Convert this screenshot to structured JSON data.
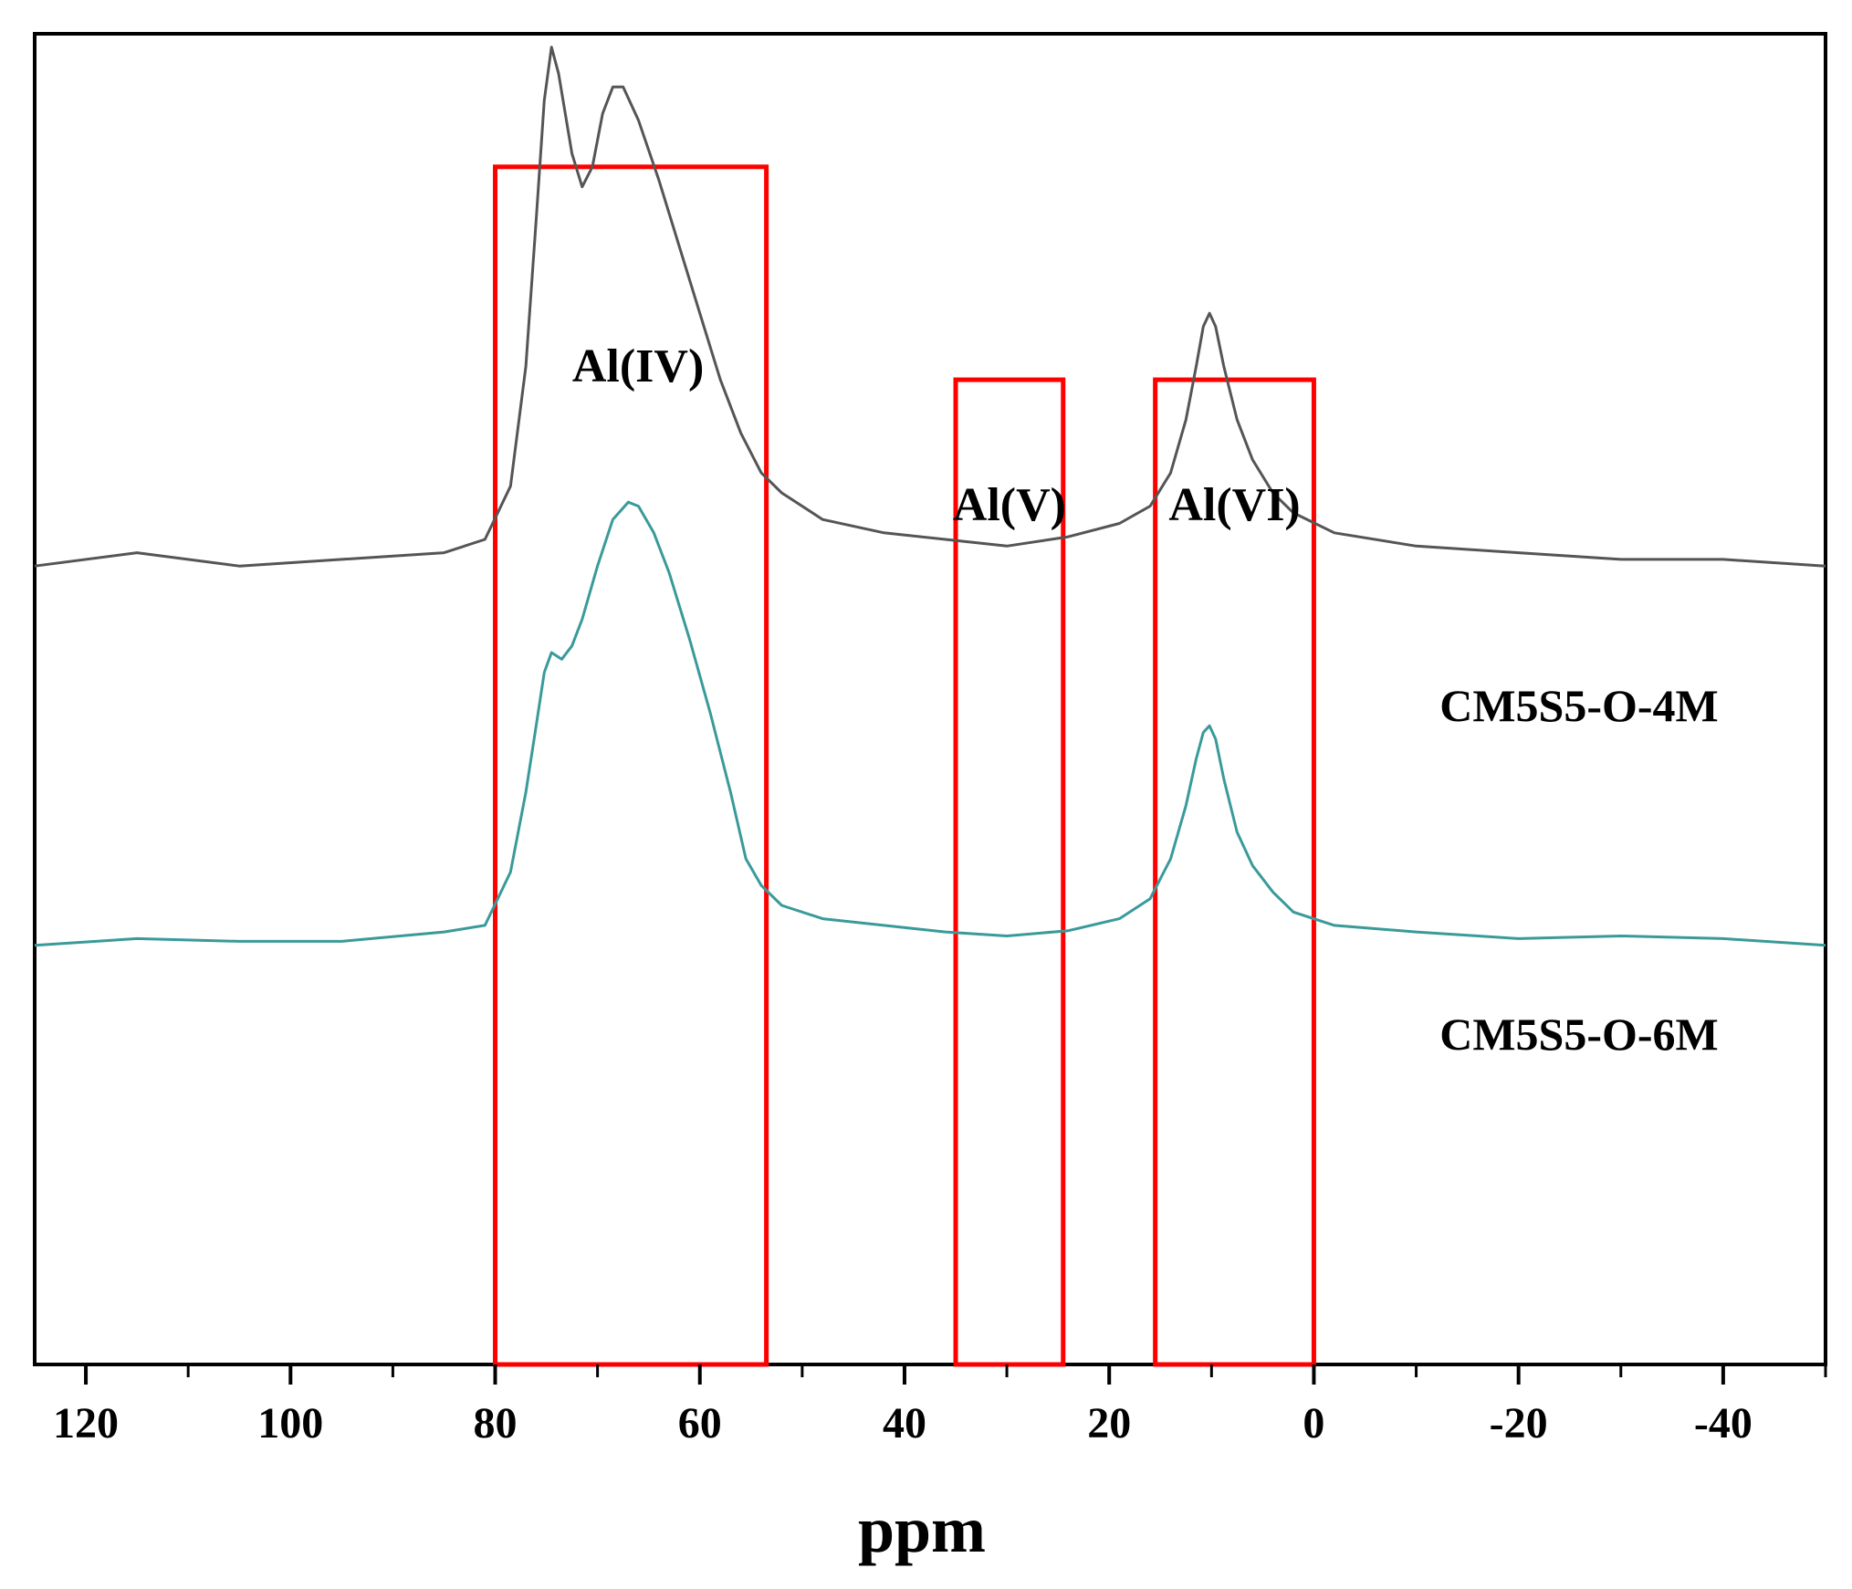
{
  "chart_data": {
    "type": "line",
    "title": "",
    "xlabel": "ppm",
    "ylabel": "",
    "xlim": [
      125,
      -50
    ],
    "x_reversed": true,
    "x_ticks": [
      120,
      100,
      80,
      60,
      40,
      20,
      0,
      -20,
      -40
    ],
    "x_tick_labels": [
      "120",
      "100",
      "80",
      "60",
      "40",
      "20",
      "0",
      "-20",
      "-40"
    ],
    "ylim": [
      0,
      1
    ],
    "y_ticks_shown": false,
    "grid": false,
    "series": [
      {
        "name": "CM5S5-O-4M",
        "color": "#555555",
        "points": [
          [
            125,
            0.6
          ],
          [
            115,
            0.61
          ],
          [
            105,
            0.6
          ],
          [
            95,
            0.605
          ],
          [
            85,
            0.61
          ],
          [
            81,
            0.62
          ],
          [
            78.5,
            0.66
          ],
          [
            77,
            0.75
          ],
          [
            76,
            0.86
          ],
          [
            75.2,
            0.95
          ],
          [
            74.5,
            0.99
          ],
          [
            73.8,
            0.97
          ],
          [
            72.5,
            0.91
          ],
          [
            71.5,
            0.885
          ],
          [
            70.5,
            0.9
          ],
          [
            69.5,
            0.94
          ],
          [
            68.5,
            0.96
          ],
          [
            67.5,
            0.96
          ],
          [
            66,
            0.935
          ],
          [
            64,
            0.89
          ],
          [
            62,
            0.84
          ],
          [
            60,
            0.79
          ],
          [
            58,
            0.74
          ],
          [
            56,
            0.7
          ],
          [
            54,
            0.67
          ],
          [
            52,
            0.655
          ],
          [
            48,
            0.635
          ],
          [
            42,
            0.625
          ],
          [
            36,
            0.62
          ],
          [
            30,
            0.615
          ],
          [
            24,
            0.622
          ],
          [
            19,
            0.632
          ],
          [
            16,
            0.645
          ],
          [
            14,
            0.67
          ],
          [
            12.5,
            0.71
          ],
          [
            11.5,
            0.75
          ],
          [
            10.8,
            0.78
          ],
          [
            10.2,
            0.79
          ],
          [
            9.6,
            0.78
          ],
          [
            8.8,
            0.75
          ],
          [
            7.5,
            0.71
          ],
          [
            6,
            0.68
          ],
          [
            4,
            0.655
          ],
          [
            2,
            0.64
          ],
          [
            -2,
            0.625
          ],
          [
            -10,
            0.615
          ],
          [
            -20,
            0.61
          ],
          [
            -30,
            0.605
          ],
          [
            -40,
            0.605
          ],
          [
            -50,
            0.6
          ]
        ]
      },
      {
        "name": "CM5S5-O-6M",
        "color": "#3a9a9a",
        "points": [
          [
            125,
            0.315
          ],
          [
            115,
            0.32
          ],
          [
            105,
            0.318
          ],
          [
            95,
            0.318
          ],
          [
            85,
            0.325
          ],
          [
            81,
            0.33
          ],
          [
            78.5,
            0.37
          ],
          [
            77,
            0.43
          ],
          [
            76,
            0.48
          ],
          [
            75.2,
            0.52
          ],
          [
            74.5,
            0.535
          ],
          [
            73.5,
            0.53
          ],
          [
            72.5,
            0.54
          ],
          [
            71.5,
            0.56
          ],
          [
            70,
            0.6
          ],
          [
            68.5,
            0.635
          ],
          [
            67,
            0.648
          ],
          [
            66,
            0.645
          ],
          [
            64.5,
            0.625
          ],
          [
            63,
            0.595
          ],
          [
            61,
            0.545
          ],
          [
            59,
            0.49
          ],
          [
            57,
            0.43
          ],
          [
            55.5,
            0.38
          ],
          [
            54,
            0.36
          ],
          [
            52,
            0.345
          ],
          [
            48,
            0.335
          ],
          [
            42,
            0.33
          ],
          [
            36,
            0.325
          ],
          [
            30,
            0.322
          ],
          [
            24,
            0.326
          ],
          [
            19,
            0.335
          ],
          [
            16,
            0.35
          ],
          [
            14,
            0.38
          ],
          [
            12.5,
            0.42
          ],
          [
            11.5,
            0.455
          ],
          [
            10.8,
            0.475
          ],
          [
            10.2,
            0.48
          ],
          [
            9.6,
            0.47
          ],
          [
            8.8,
            0.44
          ],
          [
            7.5,
            0.4
          ],
          [
            6,
            0.375
          ],
          [
            4,
            0.355
          ],
          [
            2,
            0.34
          ],
          [
            -2,
            0.33
          ],
          [
            -10,
            0.325
          ],
          [
            -20,
            0.32
          ],
          [
            -30,
            0.322
          ],
          [
            -40,
            0.32
          ],
          [
            -50,
            0.315
          ]
        ]
      }
    ],
    "regions": [
      {
        "label": "Al(IV)",
        "x_from": 80,
        "x_to": 53.5,
        "y_top": 0.9,
        "color": "#ff0000"
      },
      {
        "label": "Al(V)",
        "x_from": 35,
        "x_to": 24.5,
        "y_top": 0.74,
        "color": "#ff0000"
      },
      {
        "label": "Al(VI)",
        "x_from": 15.5,
        "x_to": 0,
        "y_top": 0.74,
        "color": "#ff0000"
      }
    ]
  }
}
